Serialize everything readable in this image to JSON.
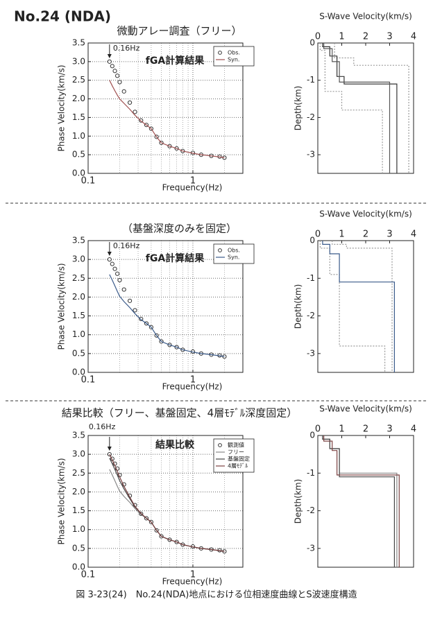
{
  "header": "No.24 (NDA)",
  "caption": "図 3-23(24)　No.24(NDA)地点における位相速度曲線とS波速度構造",
  "chart_data": [
    {
      "type": "line",
      "title": "微動アレー調査（フリー）",
      "subtitle": "fGA計算結果",
      "annotation": {
        "text": "0.16Hz",
        "x": 0.16
      },
      "xlabel": "Frequency(Hz)",
      "ylabel": "Phase Velocity(km/s)",
      "xscale": "log",
      "grid": true,
      "legend": "upper right",
      "xlim": [
        0.1,
        3
      ],
      "xticks": [
        0.1,
        1
      ],
      "xminorticks": [
        0.2,
        0.3,
        0.4,
        0.5,
        0.6,
        0.7,
        0.8,
        0.9,
        2,
        3
      ],
      "ylim": [
        0,
        3.5
      ],
      "yticks": [
        {
          "value": 0,
          "label": "0.0"
        },
        0.5,
        {
          "value": 1,
          "label": "1.0"
        },
        1.5,
        {
          "value": 2,
          "label": "2.0"
        },
        2.5,
        {
          "value": 3,
          "label": "3.0"
        },
        3.5
      ],
      "x": [
        0.16,
        0.17,
        0.18,
        0.19,
        0.2,
        0.22,
        0.25,
        0.28,
        0.32,
        0.36,
        0.4,
        0.45,
        0.5,
        0.6,
        0.7,
        0.8,
        1.0,
        1.2,
        1.5,
        1.8,
        2.0
      ],
      "series": [
        {
          "name": "Obs.",
          "color": "#333333",
          "marker": "circle",
          "values": [
            3.0,
            2.88,
            2.75,
            2.62,
            2.45,
            2.2,
            1.9,
            1.65,
            1.42,
            1.3,
            1.2,
            0.98,
            0.82,
            0.73,
            0.67,
            0.6,
            0.55,
            0.5,
            0.47,
            0.45,
            0.42
          ]
        },
        {
          "name": "Syn.",
          "color": "#a05050",
          "values": [
            2.5,
            2.35,
            2.22,
            2.1,
            2.0,
            1.88,
            1.72,
            1.56,
            1.4,
            1.3,
            1.2,
            0.98,
            0.82,
            0.73,
            0.67,
            0.6,
            0.54,
            0.5,
            0.47,
            0.44,
            0.42
          ]
        }
      ]
    },
    {
      "type": "line",
      "xlabel": "S-Wave Velocity(km/s)",
      "ylabel": "Depth(km)",
      "xaxis": "top",
      "xlim": [
        0,
        4
      ],
      "xticks": [
        0,
        1,
        2,
        3,
        4
      ],
      "ylim": [
        -3.5,
        0
      ],
      "yticks": [
        0,
        -1,
        -2,
        -3
      ],
      "series": [
        {
          "color": "#999999",
          "dash": true,
          "x": [
            0.1,
            0.1,
            0.3,
            0.3,
            1.0,
            1.0,
            2.7,
            2.7
          ],
          "values": [
            0,
            -0.2,
            -0.2,
            -1.3,
            -1.3,
            -1.8,
            -1.8,
            -3.5
          ]
        },
        {
          "color": "#999999",
          "dash": true,
          "x": [
            0.7,
            0.7,
            1.5,
            1.5,
            3.8,
            3.8
          ],
          "values": [
            0,
            -0.4,
            -0.4,
            -0.6,
            -0.6,
            -3.5
          ]
        },
        {
          "color": "#333333",
          "x": [
            0.2,
            0.2,
            0.5,
            0.5,
            0.8,
            0.8,
            1.1,
            1.1,
            3.3,
            3.3
          ],
          "values": [
            0,
            -0.1,
            -0.1,
            -0.35,
            -0.35,
            -0.9,
            -0.9,
            -1.1,
            -1.1,
            -3.5
          ]
        },
        {
          "color": "#555555",
          "x": [
            0.25,
            0.25,
            0.6,
            0.6,
            0.9,
            0.9,
            3.0,
            3.0
          ],
          "values": [
            0,
            -0.15,
            -0.15,
            -0.5,
            -0.5,
            -1.05,
            -1.05,
            -3.5
          ]
        }
      ]
    },
    {
      "type": "line",
      "title": "（基盤深度のみを固定）",
      "subtitle": "fGA計算結果",
      "annotation": {
        "text": "0.16Hz",
        "x": 0.16
      },
      "xlabel": "Frequency(Hz)",
      "ylabel": "Phase Velocity(km/s)",
      "xscale": "log",
      "grid": true,
      "legend": "upper right",
      "xlim": [
        0.1,
        3
      ],
      "xticks": [
        0.1,
        1
      ],
      "xminorticks": [
        0.2,
        0.3,
        0.4,
        0.5,
        0.6,
        0.7,
        0.8,
        0.9,
        2,
        3
      ],
      "ylim": [
        0,
        3.5
      ],
      "yticks": [
        {
          "value": 0,
          "label": "0.0"
        },
        0.5,
        {
          "value": 1,
          "label": "1.0"
        },
        1.5,
        {
          "value": 2,
          "label": "2.0"
        },
        2.5,
        {
          "value": 3,
          "label": "3.0"
        },
        3.5
      ],
      "x": [
        0.16,
        0.17,
        0.18,
        0.19,
        0.2,
        0.22,
        0.25,
        0.28,
        0.32,
        0.36,
        0.4,
        0.45,
        0.5,
        0.6,
        0.7,
        0.8,
        1.0,
        1.2,
        1.5,
        1.8,
        2.0
      ],
      "series": [
        {
          "name": "Obs.",
          "color": "#333333",
          "marker": "circle",
          "values": [
            3.0,
            2.88,
            2.75,
            2.62,
            2.45,
            2.2,
            1.9,
            1.65,
            1.42,
            1.3,
            1.2,
            0.98,
            0.82,
            0.73,
            0.67,
            0.6,
            0.55,
            0.5,
            0.47,
            0.45,
            0.42
          ]
        },
        {
          "name": "Syn.",
          "color": "#3a5a8a",
          "values": [
            2.6,
            2.45,
            2.3,
            2.15,
            2.02,
            1.88,
            1.72,
            1.56,
            1.4,
            1.3,
            1.2,
            0.98,
            0.82,
            0.73,
            0.67,
            0.6,
            0.54,
            0.5,
            0.47,
            0.44,
            0.42
          ]
        }
      ]
    },
    {
      "type": "line",
      "xlabel": "S-Wave Velocity(km/s)",
      "ylabel": "Depth(km)",
      "xaxis": "top",
      "xlim": [
        0,
        4
      ],
      "xticks": [
        0,
        1,
        2,
        3,
        4
      ],
      "ylim": [
        -3.5,
        0
      ],
      "yticks": [
        0,
        -1,
        -2,
        -3
      ],
      "series": [
        {
          "color": "#999999",
          "dash": true,
          "x": [
            0.1,
            0.1,
            0.5,
            0.5,
            0.9,
            0.9,
            2.8,
            2.8
          ],
          "values": [
            0,
            -0.2,
            -0.2,
            -0.9,
            -0.9,
            -2.8,
            -2.8,
            -3.5
          ]
        },
        {
          "color": "#999999",
          "dash": true,
          "x": [
            0.6,
            0.6,
            1.2,
            1.2,
            3.1,
            3.1
          ],
          "values": [
            0,
            -0.1,
            -0.1,
            -0.2,
            -0.2,
            -3.5
          ]
        },
        {
          "color": "#3a5a8a",
          "x": [
            0.2,
            0.2,
            0.5,
            0.5,
            0.9,
            0.9,
            3.2,
            3.2
          ],
          "values": [
            0,
            -0.1,
            -0.1,
            -0.35,
            -0.35,
            -1.1,
            -1.1,
            -3.5
          ]
        }
      ]
    },
    {
      "type": "line",
      "title": "結果比較（フリー、基盤固定、4層ﾓﾃﾞﾙ深度固定）",
      "subtitle": "結果比較",
      "annotation": {
        "text": "0.16Hz",
        "x": 0.16
      },
      "xlabel": "Frequency(Hz)",
      "ylabel": "Phase Velocity(km/s)",
      "xscale": "log",
      "grid": true,
      "legend": "upper right",
      "xlim": [
        0.1,
        3
      ],
      "xticks": [
        0.1,
        1
      ],
      "xminorticks": [
        0.2,
        0.3,
        0.4,
        0.5,
        0.6,
        0.7,
        0.8,
        0.9,
        2,
        3
      ],
      "ylim": [
        0,
        3.5
      ],
      "yticks": [
        {
          "value": 0,
          "label": "0.0"
        },
        0.5,
        {
          "value": 1,
          "label": "1.0"
        },
        1.5,
        {
          "value": 2,
          "label": "2.0"
        },
        2.5,
        {
          "value": 3,
          "label": "3.0"
        },
        3.5
      ],
      "x": [
        0.16,
        0.17,
        0.18,
        0.19,
        0.2,
        0.22,
        0.25,
        0.28,
        0.32,
        0.36,
        0.4,
        0.45,
        0.5,
        0.6,
        0.7,
        0.8,
        1.0,
        1.2,
        1.5,
        1.8,
        2.0
      ],
      "series": [
        {
          "name": "観測値",
          "color": "#333333",
          "marker": "circle",
          "values": [
            3.0,
            2.88,
            2.75,
            2.62,
            2.45,
            2.2,
            1.9,
            1.65,
            1.42,
            1.3,
            1.2,
            0.98,
            0.82,
            0.73,
            0.67,
            0.6,
            0.55,
            0.5,
            0.47,
            0.45,
            0.42
          ]
        },
        {
          "name": "フリー",
          "color": "#888888",
          "values": [
            2.6,
            2.45,
            2.3,
            2.15,
            2.02,
            1.88,
            1.72,
            1.56,
            1.4,
            1.3,
            1.2,
            0.98,
            0.82,
            0.73,
            0.67,
            0.6,
            0.54,
            0.5,
            0.47,
            0.44,
            0.42
          ]
        },
        {
          "name": "基盤固定",
          "color": "#444444",
          "values": [
            2.9,
            2.75,
            2.6,
            2.45,
            2.3,
            2.08,
            1.82,
            1.6,
            1.42,
            1.3,
            1.2,
            0.98,
            0.82,
            0.73,
            0.67,
            0.6,
            0.54,
            0.5,
            0.47,
            0.44,
            0.42
          ]
        },
        {
          "name": "4層ﾓﾃﾞﾙ",
          "color": "#7a4040",
          "values": [
            3.0,
            2.85,
            2.7,
            2.55,
            2.4,
            2.15,
            1.86,
            1.62,
            1.43,
            1.3,
            1.2,
            0.98,
            0.82,
            0.73,
            0.67,
            0.6,
            0.54,
            0.5,
            0.47,
            0.44,
            0.42
          ]
        }
      ]
    },
    {
      "type": "line",
      "xlabel": "S-Wave Velocity(km/s)",
      "ylabel": "Depth(km)",
      "xaxis": "top",
      "xlim": [
        0,
        4
      ],
      "xticks": [
        0,
        1,
        2,
        3,
        4
      ],
      "ylim": [
        -3.5,
        0
      ],
      "yticks": [
        0,
        -1,
        -2,
        -3
      ],
      "series": [
        {
          "color": "#888888",
          "x": [
            0.2,
            0.2,
            0.5,
            0.5,
            0.9,
            0.9,
            3.3,
            3.3
          ],
          "values": [
            0,
            -0.1,
            -0.1,
            -0.35,
            -0.35,
            -1.0,
            -1.0,
            -3.5
          ]
        },
        {
          "color": "#444444",
          "x": [
            0.2,
            0.2,
            0.5,
            0.5,
            0.9,
            0.9,
            3.2,
            3.2
          ],
          "values": [
            0,
            -0.1,
            -0.1,
            -0.35,
            -0.35,
            -1.1,
            -1.1,
            -3.5
          ]
        },
        {
          "color": "#7a4040",
          "x": [
            0.25,
            0.25,
            0.6,
            0.6,
            0.8,
            0.8,
            3.4,
            3.4
          ],
          "values": [
            0,
            -0.15,
            -0.15,
            -0.4,
            -0.4,
            -1.05,
            -1.05,
            -3.5
          ]
        }
      ]
    }
  ]
}
